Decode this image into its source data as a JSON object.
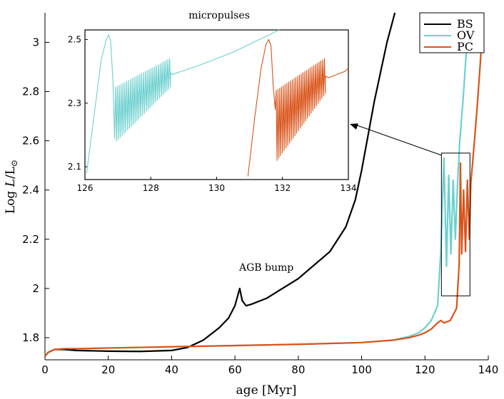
{
  "chart_data": [
    {
      "type": "line",
      "panel": "main",
      "title": "",
      "xlabel": "age [Myr]",
      "ylabel": "Log L/L",
      "ylabel_parts": {
        "prefix": "Log ",
        "symbol": "L",
        "slash": "/L",
        "subscript": "⊙"
      },
      "xlim": [
        0,
        140
      ],
      "ylim": [
        1.71,
        3.12
      ],
      "xticks": [
        0,
        20,
        40,
        60,
        80,
        100,
        120,
        140
      ],
      "xtick_labels": [
        "0",
        "20",
        "40",
        "60",
        "80",
        "100",
        "120",
        "140"
      ],
      "yticks": [
        1.8,
        2.0,
        2.2,
        2.4,
        2.6,
        2.8,
        3.0
      ],
      "ytick_labels": [
        "1.8",
        "2",
        "2.2",
        "2.4",
        "2.6",
        "2.8",
        "3"
      ],
      "grid": false,
      "legend_position": "top-right",
      "annotations": [
        "AGB bump"
      ],
      "series": [
        {
          "name": "BS",
          "color": "#000000",
          "x": [
            0,
            1,
            3,
            6,
            10,
            20,
            30,
            40,
            45,
            50,
            55,
            58,
            60,
            61.5,
            62.3,
            63.5,
            65,
            70,
            80,
            90,
            95,
            98,
            100,
            102,
            104,
            106,
            108,
            110.5
          ],
          "y": [
            1.725,
            1.74,
            1.752,
            1.752,
            1.748,
            1.745,
            1.744,
            1.748,
            1.76,
            1.79,
            1.84,
            1.88,
            1.93,
            2.0,
            1.95,
            1.93,
            1.935,
            1.96,
            2.04,
            2.15,
            2.25,
            2.36,
            2.48,
            2.62,
            2.76,
            2.88,
            3.0,
            3.12
          ]
        },
        {
          "name": "OV",
          "color": "#6dd0cf",
          "x": [
            0,
            1,
            3,
            6,
            10,
            20,
            40,
            60,
            80,
            100,
            110,
            115,
            118,
            120,
            122,
            124,
            125,
            126,
            126.8,
            127.5,
            128.2,
            128.9,
            129.6,
            130.3,
            131,
            132,
            133,
            134
          ],
          "y": [
            1.725,
            1.74,
            1.752,
            1.755,
            1.755,
            1.758,
            1.763,
            1.768,
            1.773,
            1.78,
            1.79,
            1.805,
            1.82,
            1.84,
            1.87,
            1.93,
            2.15,
            2.53,
            2.09,
            2.46,
            2.14,
            2.44,
            2.2,
            2.43,
            2.6,
            2.76,
            2.95,
            3.12
          ]
        },
        {
          "name": "PC",
          "color": "#d95319",
          "x": [
            0,
            1,
            3,
            6,
            10,
            20,
            40,
            60,
            80,
            100,
            110,
            115,
            118,
            120,
            122,
            124,
            125,
            126,
            128,
            130,
            130.8,
            131.2,
            131.6,
            132.2,
            132.8,
            133.4,
            134,
            134.5,
            135.5,
            136.5,
            137.5,
            138.5
          ],
          "y": [
            1.725,
            1.74,
            1.752,
            1.755,
            1.755,
            1.758,
            1.763,
            1.768,
            1.773,
            1.78,
            1.79,
            1.8,
            1.81,
            1.82,
            1.835,
            1.86,
            1.87,
            1.86,
            1.87,
            1.92,
            2.1,
            2.51,
            2.14,
            2.4,
            2.15,
            2.44,
            2.2,
            2.43,
            2.58,
            2.74,
            2.92,
            3.12
          ]
        }
      ]
    },
    {
      "type": "line",
      "panel": "inset",
      "title": "micropulses",
      "xlim": [
        126,
        134
      ],
      "ylim": [
        2.06,
        2.53
      ],
      "xticks": [
        126,
        128,
        130,
        132,
        134
      ],
      "xtick_labels": [
        "126",
        "128",
        "130",
        "132",
        "134"
      ],
      "yticks": [
        2.1,
        2.3,
        2.5
      ],
      "ytick_labels": [
        "2.1",
        "2.3",
        "2.5"
      ],
      "series": [
        {
          "name": "OV",
          "color": "#6dd0cf",
          "spike": {
            "x": [
              126.05,
              126.3,
              126.5,
              126.65,
              126.72,
              126.78,
              126.85,
              126.9
            ],
            "y": [
              2.08,
              2.28,
              2.44,
              2.5,
              2.515,
              2.495,
              2.37,
              2.19
            ]
          },
          "pulses": {
            "x_start": 126.9,
            "x_end": 128.6,
            "count": 30,
            "top_start": 2.35,
            "top_end": 2.44,
            "bottom_start": 2.18,
            "bottom_end": 2.35
          },
          "tail": {
            "x": [
              128.6,
              128.65,
              129.5,
              130.5,
              131.3,
              131.9
            ],
            "y": [
              2.395,
              2.39,
              2.42,
              2.46,
              2.5,
              2.53
            ]
          }
        },
        {
          "name": "PC",
          "color": "#d95319",
          "spike": {
            "x": [
              130.95,
              131.15,
              131.35,
              131.5,
              131.58,
              131.65,
              131.72,
              131.78
            ],
            "y": [
              2.07,
              2.25,
              2.41,
              2.485,
              2.5,
              2.48,
              2.35,
              2.28
            ]
          },
          "pulses": {
            "x_start": 131.78,
            "x_end": 133.3,
            "count": 28,
            "top_start": 2.34,
            "top_end": 2.44,
            "bottom_start": 2.12,
            "bottom_end": 2.33
          },
          "tail": {
            "x": [
              133.3,
              133.4,
              133.9,
              134.0
            ],
            "y": [
              2.385,
              2.38,
              2.4,
              2.41
            ]
          }
        }
      ]
    }
  ],
  "legend": [
    {
      "label": "BS",
      "color": "#000000"
    },
    {
      "label": "OV",
      "color": "#6dd0cf"
    },
    {
      "label": "PC",
      "color": "#d95319"
    }
  ],
  "highlight_box": {
    "x": [
      125.2,
      134.2
    ],
    "y": [
      1.97,
      2.55
    ]
  }
}
